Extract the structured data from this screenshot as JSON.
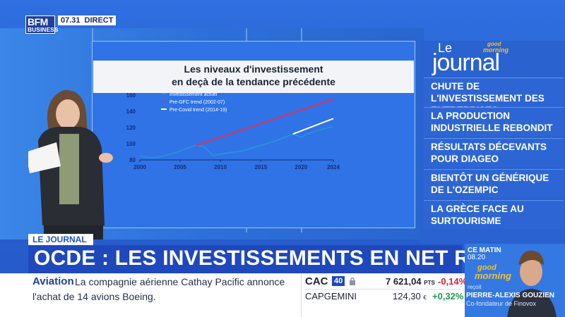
{
  "channel": {
    "logo_top": "BFM",
    "logo_bottom": "BUSINESS",
    "time": "07.31",
    "live": "DIRECT"
  },
  "chart_data": {
    "type": "line",
    "title_line1": "Les niveaux d'investissement",
    "title_line2": "en deçà de la tendance précédente",
    "xlabel": "",
    "ylabel": "",
    "x_ticks": [
      2000,
      2005,
      2010,
      2015,
      2020,
      2024
    ],
    "y_ticks": [
      80,
      100,
      120,
      140,
      160
    ],
    "xlim": [
      2000,
      2024
    ],
    "ylim": [
      80,
      160
    ],
    "series": [
      {
        "name": "Investissement actuel",
        "color": "#2e8de0",
        "x": [
          2000,
          2001,
          2002,
          2003,
          2004,
          2005,
          2006,
          2007,
          2008,
          2009,
          2010,
          2011,
          2012,
          2013,
          2014,
          2015,
          2016,
          2017,
          2018,
          2019,
          2020,
          2021,
          2022,
          2023,
          2024
        ],
        "y": [
          85,
          83,
          83,
          85,
          88,
          91,
          95,
          98,
          96,
          86,
          87,
          89,
          90,
          92,
          95,
          98,
          101,
          104,
          108,
          112,
          108,
          113,
          116,
          119,
          121
        ]
      },
      {
        "name": "Pre-GFC trend (2002-07)",
        "color": "#e0305c",
        "x": [
          2007,
          2024
        ],
        "y": [
          98,
          155
        ]
      },
      {
        "name": "Pre-Covid trend (2014-19)",
        "color": "#ffffff",
        "x": [
          2019,
          2024
        ],
        "y": [
          112,
          131
        ]
      }
    ]
  },
  "journal": {
    "logo_le": "Le",
    "logo_journal": "journal",
    "gm_top": "good",
    "gm_bottom": "morning",
    "items": [
      "CHUTE DE L'INVESTISSEMENT DES ENTREPRISES",
      "LA PRODUCTION INDUSTRIELLE REBONDIT",
      "RÉSULTATS DÉCEVANTS POUR DIAGEO",
      "BIENTÔT UN GÉNÉRIQUE DE L'OZEMPIC",
      "LA GRÈCE FACE AU SURTOURISME"
    ]
  },
  "lower_third": {
    "tag": "LE JOURNAL",
    "headline": "OCDE : LES INVESTISSEMENTS EN NET RECUL"
  },
  "ticker": {
    "name": "Aviation",
    "text_line1": "La compagnie aérienne Cathay Pacific annonce",
    "text_line2": "l'achat de 14 avions Boeing."
  },
  "market": {
    "index": "CAC",
    "index_badge": "40",
    "index_value": "7 621,04",
    "index_unit": "PTS",
    "index_change": "-0,14%",
    "stock": "CAPGEMINI",
    "stock_value": "124,30",
    "stock_unit": "€",
    "stock_change": "+0,32%"
  },
  "promo": {
    "label": "CE MATIN",
    "time": "08.20",
    "show_a": "good",
    "show_b": "morning",
    "recoit": "reçoit",
    "guest_name": "PIERRE-ALEXIS GOUZIEN",
    "guest_role": "Co-fondateur de Finovox"
  }
}
